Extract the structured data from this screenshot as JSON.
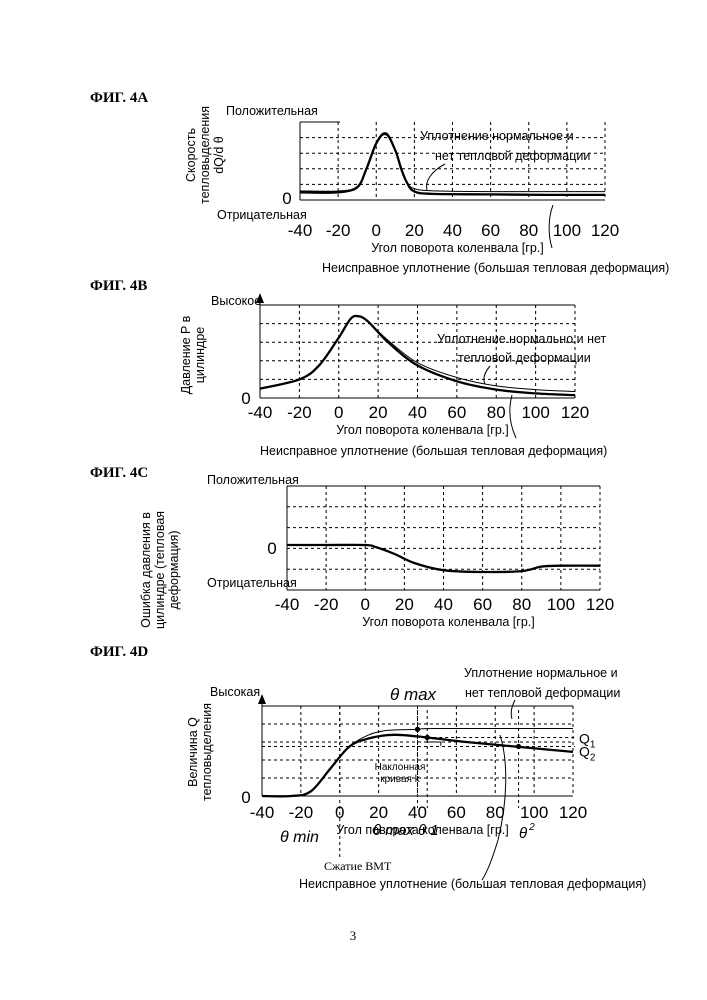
{
  "page_number": "3",
  "chart_data": [
    {
      "id": "4A",
      "type": "line",
      "fig_label": "ФИГ. 4A",
      "title": "",
      "xlabel": "Угол поворота коленвала [гр.]",
      "ylabel_lines": [
        "Скорость",
        "тепловыделения",
        "dQ/d θ"
      ],
      "y_top_label": "Положительная",
      "y_bottom_label": "Отрицательная",
      "y_zero_label": "0",
      "xticks": [
        "-40",
        "-20",
        "0",
        "20",
        "40",
        "60",
        "80",
        "100",
        "120"
      ],
      "xlim": [
        -40,
        120
      ],
      "ylim": [
        -0.15,
        1.0
      ],
      "grid": true,
      "series": [
        {
          "name": "Уплотнение нормальное и нет тепловой деформации",
          "style": "thin",
          "points": [
            [
              -40,
              0.0
            ],
            [
              -20,
              0.0
            ],
            [
              -10,
              0.08
            ],
            [
              -5,
              0.35
            ],
            [
              0,
              0.7
            ],
            [
              5,
              0.82
            ],
            [
              10,
              0.6
            ],
            [
              13,
              0.35
            ],
            [
              16,
              0.15
            ],
            [
              20,
              0.06
            ],
            [
              30,
              0.03
            ],
            [
              60,
              0.02
            ],
            [
              120,
              0.02
            ]
          ]
        },
        {
          "name": "Неисправное уплотнение (большая тепловая деформация)",
          "style": "bold",
          "points": [
            [
              -40,
              0.02
            ],
            [
              -20,
              0.02
            ],
            [
              -10,
              0.08
            ],
            [
              -5,
              0.35
            ],
            [
              0,
              0.7
            ],
            [
              5,
              0.84
            ],
            [
              10,
              0.6
            ],
            [
              13,
              0.35
            ],
            [
              16,
              0.15
            ],
            [
              20,
              0.02
            ],
            [
              30,
              -0.02
            ],
            [
              60,
              -0.03
            ],
            [
              90,
              -0.04
            ],
            [
              120,
              -0.04
            ]
          ]
        }
      ],
      "annotations": {
        "normal": [
          "Уплотнение нормальное и",
          "нет тепловой деформации"
        ],
        "faulty": "Неисправное уплотнение (большая тепловая деформация)"
      }
    },
    {
      "id": "4B",
      "type": "line",
      "fig_label": "ФИГ. 4B",
      "title": "",
      "xlabel": "Угол поворота коленвала [гр.]",
      "ylabel_lines": [
        "Давление P в",
        "цилиндре"
      ],
      "y_top_label": "Высокое",
      "y_zero_label": "0",
      "xticks": [
        "-40",
        "-20",
        "0",
        "20",
        "40",
        "60",
        "80",
        "100",
        "120"
      ],
      "xlim": [
        -40,
        120
      ],
      "ylim": [
        0,
        1.0
      ],
      "grid": true,
      "series": [
        {
          "name": "Уплотнение нормальное и нет тепловой деформации",
          "style": "thin",
          "points": [
            [
              -40,
              0.1
            ],
            [
              -20,
              0.2
            ],
            [
              -10,
              0.35
            ],
            [
              0,
              0.65
            ],
            [
              6,
              0.85
            ],
            [
              10,
              0.88
            ],
            [
              15,
              0.82
            ],
            [
              25,
              0.62
            ],
            [
              40,
              0.38
            ],
            [
              60,
              0.22
            ],
            [
              80,
              0.13
            ],
            [
              100,
              0.09
            ],
            [
              120,
              0.07
            ]
          ]
        },
        {
          "name": "Неисправное уплотнение (большая тепловая деформация)",
          "style": "bold",
          "points": [
            [
              -40,
              0.1
            ],
            [
              -20,
              0.2
            ],
            [
              -10,
              0.35
            ],
            [
              0,
              0.65
            ],
            [
              6,
              0.85
            ],
            [
              10,
              0.88
            ],
            [
              15,
              0.82
            ],
            [
              25,
              0.6
            ],
            [
              40,
              0.35
            ],
            [
              60,
              0.18
            ],
            [
              80,
              0.09
            ],
            [
              100,
              0.05
            ],
            [
              120,
              0.03
            ]
          ]
        }
      ],
      "annotations": {
        "normal": [
          "Уплотнение нормально и нет",
          "тепловой деформации"
        ],
        "faulty": "Неисправное уплотнение (большая тепловая деформация)"
      }
    },
    {
      "id": "4C",
      "type": "line",
      "fig_label": "ФИГ. 4C",
      "title": "",
      "xlabel": "Угол поворота коленвала [гр.]",
      "ylabel_lines": [
        "Ошибка давления в",
        "цилиндре (тепловая",
        "деформация)"
      ],
      "y_top_label": "Положительная",
      "y_bottom_label": "Отрицательная",
      "y_zero_label": "0",
      "xticks": [
        "-40",
        "-20",
        "0",
        "20",
        "40",
        "60",
        "80",
        "100",
        "120"
      ],
      "xlim": [
        -40,
        120
      ],
      "ylim": [
        -0.5,
        1.0
      ],
      "grid": true,
      "series": [
        {
          "name": "Ошибка давления",
          "style": "bold",
          "points": [
            [
              -40,
              0.0
            ],
            [
              -20,
              0.0
            ],
            [
              0,
              0.0
            ],
            [
              5,
              -0.02
            ],
            [
              15,
              -0.1
            ],
            [
              25,
              -0.2
            ],
            [
              40,
              -0.28
            ],
            [
              60,
              -0.3
            ],
            [
              80,
              -0.29
            ],
            [
              90,
              -0.24
            ],
            [
              100,
              -0.23
            ],
            [
              120,
              -0.23
            ]
          ]
        }
      ]
    },
    {
      "id": "4D",
      "type": "line",
      "fig_label": "ФИГ. 4D",
      "title": "",
      "xlabel": "Угол поворота коленвала [гр.]",
      "ylabel_lines": [
        "Величина Q",
        "тепловыделения"
      ],
      "y_top_label": "Высокая",
      "y_zero_label": "0",
      "xticks": [
        "-40",
        "-20",
        "0",
        "20",
        "40",
        "60",
        "80",
        "100",
        "120"
      ],
      "xlim": [
        -40,
        120
      ],
      "ylim": [
        0,
        1.0
      ],
      "grid": true,
      "series": [
        {
          "name": "Уплотнение нормальное и нет тепловой деформации",
          "style": "thin",
          "points": [
            [
              -40,
              0.0
            ],
            [
              -25,
              0.0
            ],
            [
              -15,
              0.05
            ],
            [
              -5,
              0.3
            ],
            [
              5,
              0.55
            ],
            [
              15,
              0.68
            ],
            [
              25,
              0.73
            ],
            [
              40,
              0.74
            ],
            [
              50,
              0.75
            ],
            [
              120,
              0.75
            ]
          ]
        },
        {
          "name": "Неисправное уплотнение (большая тепловая деформация)",
          "style": "bold",
          "points": [
            [
              -40,
              0.0
            ],
            [
              -25,
              0.0
            ],
            [
              -15,
              0.05
            ],
            [
              -5,
              0.3
            ],
            [
              5,
              0.55
            ],
            [
              15,
              0.64
            ],
            [
              28,
              0.68
            ],
            [
              45,
              0.65
            ],
            [
              65,
              0.6
            ],
            [
              90,
              0.55
            ],
            [
              120,
              0.49
            ]
          ]
        }
      ],
      "markers": [
        {
          "x": 40,
          "y": 0.74
        },
        {
          "x": 45,
          "y": 0.65
        },
        {
          "x": 92,
          "y": 0.55
        }
      ],
      "refs": {
        "q1": "Q",
        "q1_sub": "1",
        "q2": "Q",
        "q2_sub": "2",
        "q1_y": 0.65,
        "q2_y": 0.55
      },
      "annotations": {
        "theta_max_top": "θ max",
        "theta_max_bottom": "θ max",
        "theta_1": "θ 1",
        "theta_2": "θ",
        "theta_2_sub": "2",
        "theta_min": "θ min",
        "slope_lines": [
          "Наклонная",
          "кривая k"
        ],
        "tdc": "Сжатие ВМТ",
        "normal": [
          "Уплотнение нормальное и",
          "нет тепловой деформации"
        ],
        "faulty": "Неисправное уплотнение  (большая тепловая деформация)"
      }
    }
  ]
}
